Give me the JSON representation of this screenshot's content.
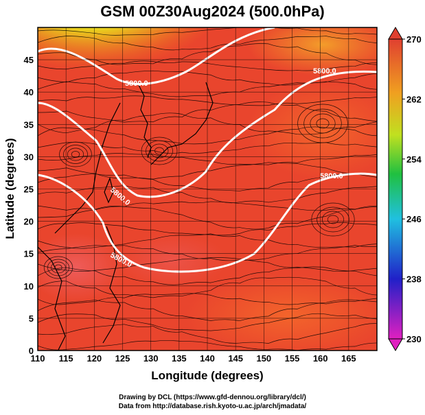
{
  "title": "GSM 00Z30Aug2024 (500.0hPa)",
  "x_axis": {
    "label": "Longitude (degrees)",
    "ticks": [
      "110",
      "115",
      "120",
      "125",
      "130",
      "135",
      "140",
      "145",
      "150",
      "155",
      "160",
      "165"
    ]
  },
  "y_axis": {
    "label": "Latitude  (degrees)",
    "ticks": [
      "0",
      "5",
      "10",
      "15",
      "20",
      "25",
      "30",
      "35",
      "40",
      "45"
    ]
  },
  "colorbar": {
    "ticks": [
      "230",
      "238",
      "246",
      "254",
      "262",
      "270"
    ],
    "range": [
      230,
      270
    ],
    "colors": [
      "#e020c0",
      "#2020d0",
      "#20c0e0",
      "#20c040",
      "#c0e020",
      "#f0a020",
      "#e04030"
    ]
  },
  "contour_labels": [
    "5800.0",
    "5800.0",
    "5800.0",
    "5800.0",
    "5800.0"
  ],
  "credits": [
    "Drawing by DCL (https://www.gfd-dennou.org/library/dcl/)",
    "Data from http://database.rish.kyoto-u.ac.jp/arch/jmadata/"
  ],
  "colors": {
    "warm": "#e9452d",
    "hot": "#f2602a",
    "cool": "#d8e81c",
    "cold": "#54c22d",
    "contour": "#ffffff",
    "streamline": "#000000",
    "coast": "#000000"
  }
}
